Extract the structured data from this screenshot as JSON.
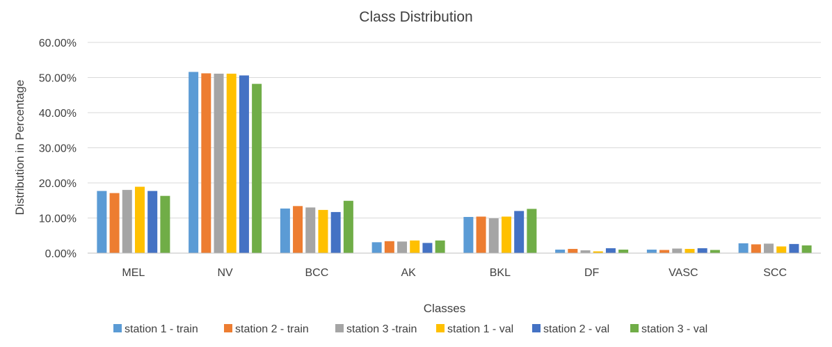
{
  "chart_data": {
    "type": "bar",
    "title": "Class Distribution",
    "xlabel": "Classes",
    "ylabel": "Distribution in Percentage",
    "ylim": [
      0,
      60
    ],
    "yticks": [
      0,
      10,
      20,
      30,
      40,
      50,
      60
    ],
    "ytick_labels": [
      "0.00%",
      "10.00%",
      "20.00%",
      "30.00%",
      "40.00%",
      "50.00%",
      "60.00%"
    ],
    "grid": true,
    "legend_position": "bottom",
    "categories": [
      "MEL",
      "NV",
      "BCC",
      "AK",
      "BKL",
      "DF",
      "VASC",
      "SCC"
    ],
    "series": [
      {
        "name": "station 1 - train",
        "color": "#5B9BD5",
        "values": [
          17.7,
          51.6,
          12.7,
          3.1,
          10.3,
          1.0,
          1.0,
          2.8
        ]
      },
      {
        "name": "station 2 - train",
        "color": "#ED7D31",
        "values": [
          17.1,
          51.2,
          13.4,
          3.4,
          10.4,
          1.2,
          0.9,
          2.5
        ]
      },
      {
        "name": "station 3 -train",
        "color": "#A5A5A5",
        "values": [
          18.0,
          51.1,
          13.0,
          3.3,
          9.9,
          0.8,
          1.3,
          2.7
        ]
      },
      {
        "name": "station 1 - val",
        "color": "#FFC000",
        "values": [
          18.9,
          51.1,
          12.3,
          3.6,
          10.4,
          0.5,
          1.2,
          1.9
        ]
      },
      {
        "name": "station 2 - val",
        "color": "#4472C4",
        "values": [
          17.7,
          50.6,
          11.7,
          2.9,
          12.0,
          1.4,
          1.4,
          2.6
        ]
      },
      {
        "name": "station 3 - val",
        "color": "#70AD47",
        "values": [
          16.3,
          48.2,
          14.9,
          3.6,
          12.6,
          1.0,
          0.9,
          2.2
        ]
      }
    ]
  }
}
